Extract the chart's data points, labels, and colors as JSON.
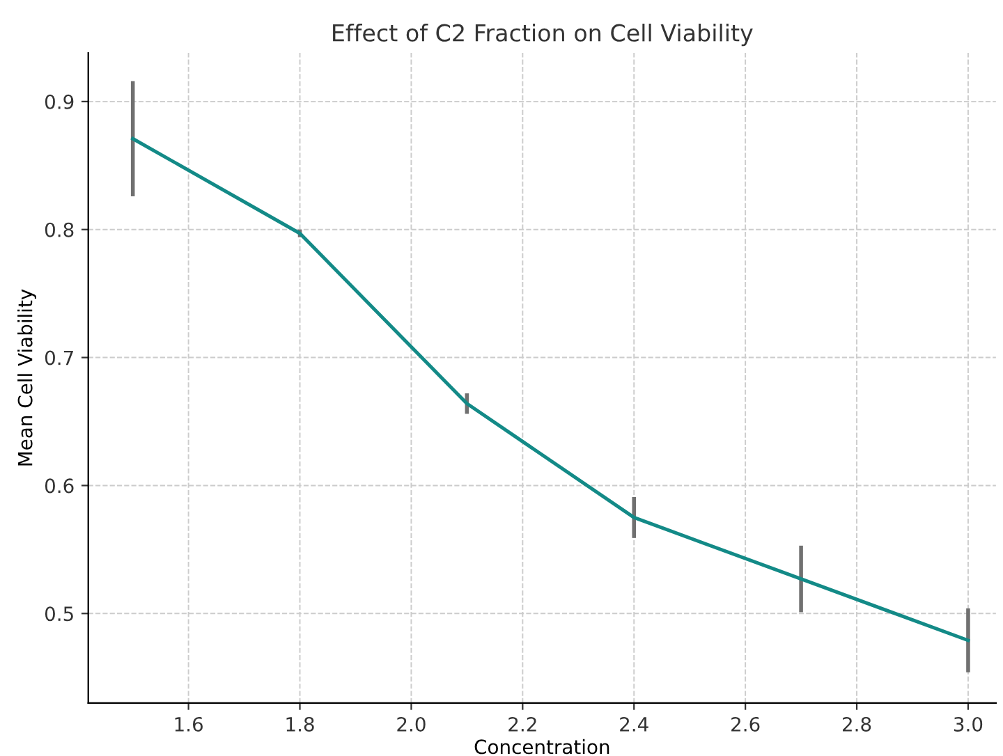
{
  "chart_data": {
    "type": "line",
    "title": "Effect of C2 Fraction on Cell Viability",
    "xlabel": "Concentration",
    "ylabel": "Mean Cell Viability",
    "x": [
      1.5,
      1.8,
      2.1,
      2.4,
      2.7,
      3.0
    ],
    "series": [
      {
        "color": "#138a87",
        "values": [
          0.871,
          0.797,
          0.664,
          0.575,
          0.527,
          0.479
        ],
        "errors": [
          0.045,
          0.003,
          0.008,
          0.016,
          0.026,
          0.025
        ]
      }
    ],
    "xlim": [
      1.42,
      3.05
    ],
    "ylim": [
      0.43,
      0.938
    ],
    "xticks": [
      1.6,
      1.8,
      {
        "value": 2,
        "label": "2.0"
      },
      2.2,
      2.4,
      2.6,
      2.8,
      {
        "value": 3,
        "label": "3.0"
      }
    ],
    "yticks": [
      0.5,
      0.6,
      0.7,
      0.8,
      0.9
    ],
    "grid": true
  }
}
